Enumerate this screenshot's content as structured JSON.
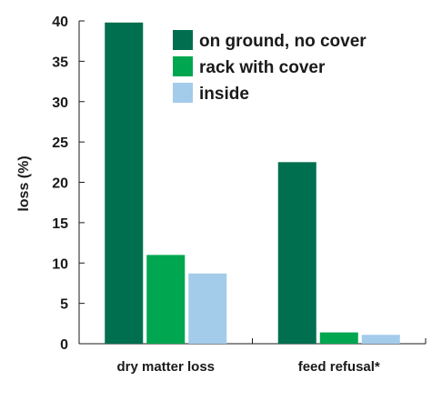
{
  "chart_data": {
    "type": "bar",
    "categories": [
      "dry matter loss",
      "feed refusal*"
    ],
    "series": [
      {
        "name": "on ground, no cover",
        "values": [
          39.8,
          22.5
        ],
        "color": "#006f4f"
      },
      {
        "name": "rack with cover",
        "values": [
          11.0,
          1.4
        ],
        "color": "#00a650"
      },
      {
        "name": "inside",
        "values": [
          8.7,
          1.1
        ],
        "color": "#a3cbea"
      }
    ],
    "title": "",
    "xlabel": "",
    "ylabel": "loss (%)",
    "ylim": [
      0,
      40
    ],
    "yticks": [
      "0",
      "5",
      "10",
      "15",
      "20",
      "25",
      "30",
      "35",
      "40"
    ],
    "grid": false,
    "legend_position": "top-right"
  }
}
